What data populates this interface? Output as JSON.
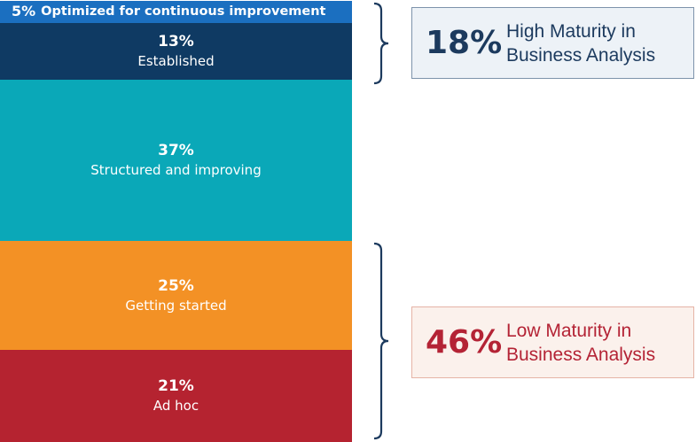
{
  "chart_data": {
    "type": "bar",
    "subtype": "stacked-100",
    "segments": [
      {
        "pct_label": "5%",
        "label": "Optimized for continuous improvement",
        "value": 5,
        "color": "#1b6fc0"
      },
      {
        "pct_label": "13%",
        "label": "Established",
        "value": 13,
        "color": "#0f3a63"
      },
      {
        "pct_label": "37%",
        "label": "Structured and improving",
        "value": 37,
        "color": "#0aa8b8"
      },
      {
        "pct_label": "25%",
        "label": "Getting started",
        "value": 25,
        "color": "#f39125"
      },
      {
        "pct_label": "21%",
        "label": "Ad hoc",
        "value": 21,
        "color": "#b52330"
      }
    ]
  },
  "callouts": {
    "high": {
      "value": "18%",
      "line1": "High Maturity in",
      "line2": "Business Analysis"
    },
    "low": {
      "value": "46%",
      "line1": "Low Maturity in",
      "line2": "Business Analysis"
    }
  },
  "colors": {
    "brace": "#1c3a5e"
  }
}
